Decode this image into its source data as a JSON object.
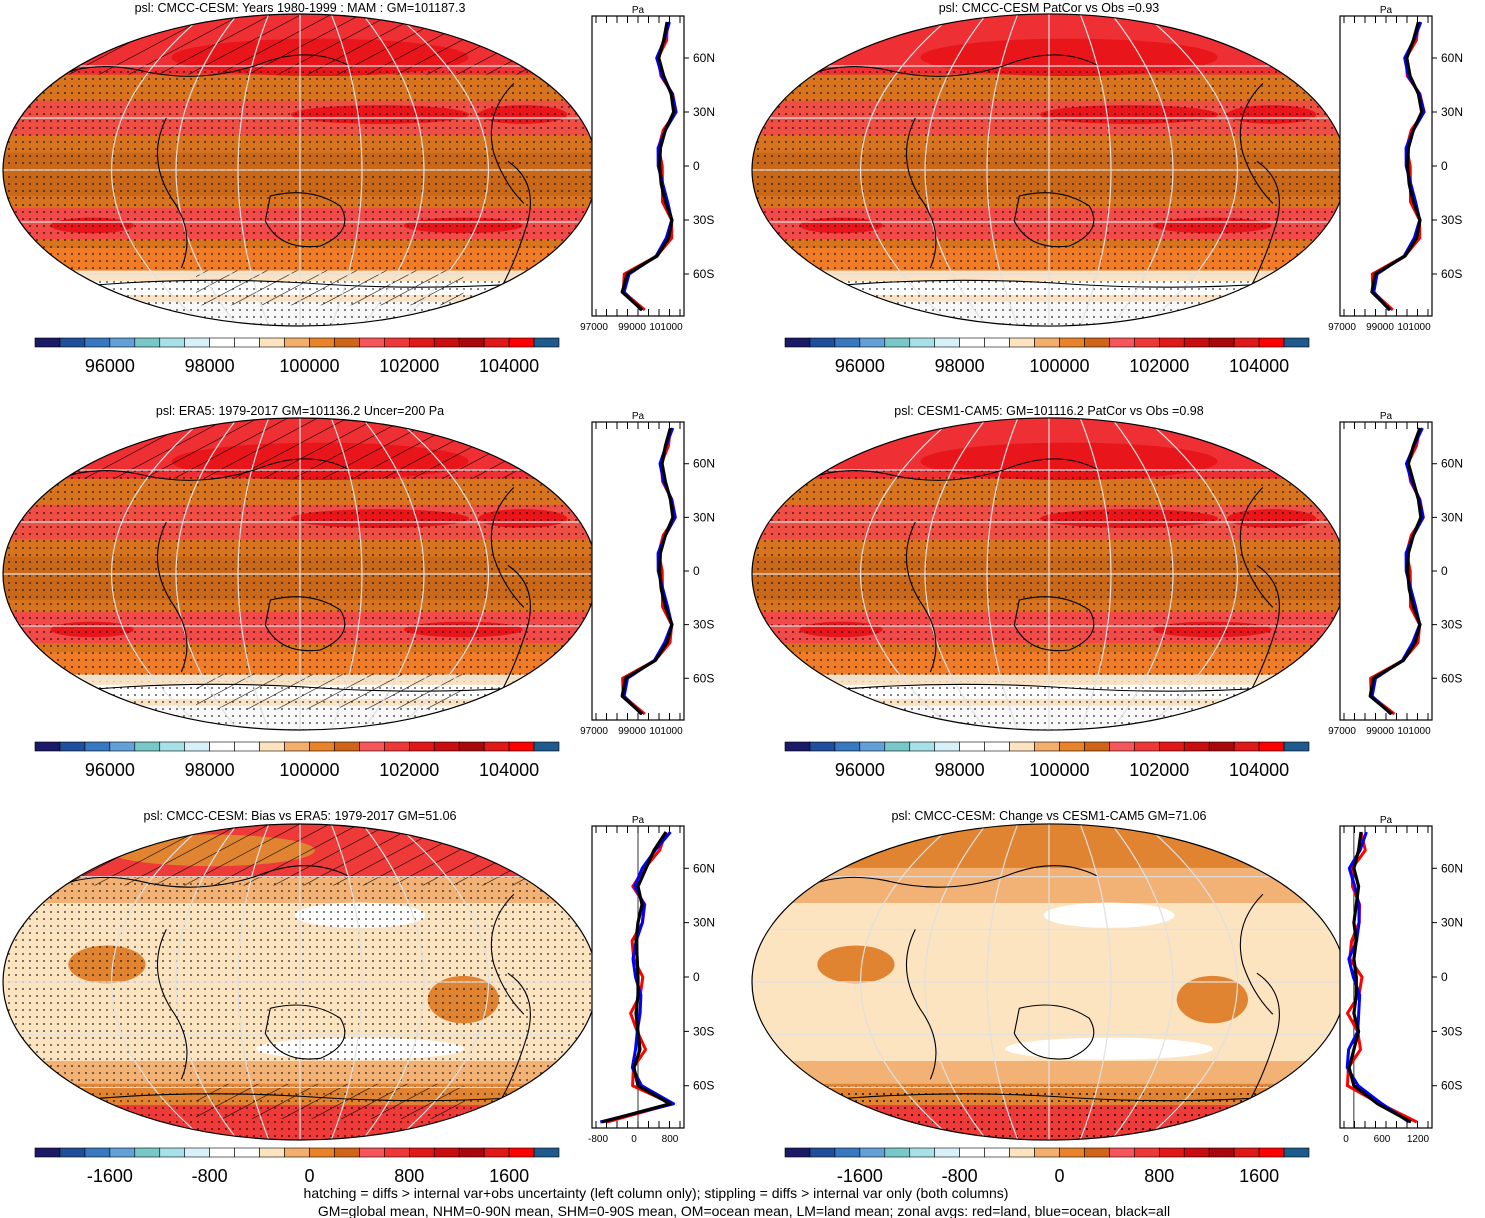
{
  "figure": {
    "variable": "psl",
    "units": "Pa",
    "projection": "Robinson",
    "panels": [
      {
        "id": "p1",
        "title": "psl: CMCC-CESM: Years 1980-1999 : MAM : GM=101187.3",
        "kind": "abs",
        "xticks": [
          "97000",
          "99000",
          "101000"
        ],
        "hatched": true
      },
      {
        "id": "p2",
        "title": "psl: CMCC-CESM PatCor vs Obs =0.93",
        "kind": "abs",
        "xticks": [
          "97000",
          "99000",
          "101000"
        ],
        "hatched": false
      },
      {
        "id": "p3",
        "title": "psl: ERA5: 1979-2017 GM=101136.2 Uncer=200 Pa",
        "kind": "abs",
        "xticks": [
          "97000",
          "99000",
          "101000"
        ],
        "hatched": true
      },
      {
        "id": "p4",
        "title": "psl: CESM1-CAM5: GM=101116.2 PatCor vs Obs =0.98",
        "kind": "abs",
        "xticks": [
          "97000",
          "99000",
          "101000"
        ],
        "hatched": false
      },
      {
        "id": "p5",
        "title": "psl: CMCC-CESM: Bias vs ERA5: 1979-2017 GM=51.06",
        "kind": "bias",
        "xticks": [
          "-800",
          "0",
          "800"
        ],
        "hatched": true
      },
      {
        "id": "p6",
        "title": "psl: CMCC-CESM: Change vs CESM1-CAM5 GM=71.06",
        "kind": "change",
        "xticks": [
          "0",
          "600",
          "1200"
        ],
        "hatched": false
      }
    ],
    "lat_ticks": [
      "60N",
      "30N",
      "0",
      "30S",
      "60S"
    ],
    "colorbars": {
      "abs": {
        "labels": [
          "96000",
          "98000",
          "100000",
          "102000",
          "104000"
        ],
        "colors": [
          "#1a1a66",
          "#1f4e9a",
          "#3878c0",
          "#64a0d8",
          "#78c8c8",
          "#a8e0e8",
          "#d8f0f8",
          "#ffffff",
          "#ffffff",
          "#fde4c0",
          "#f4ae6c",
          "#e8832a",
          "#d06418",
          "#f6555a",
          "#ee3838",
          "#e01818",
          "#c80c10",
          "#a8080c",
          "#e01818",
          "#ff0000",
          "#1e5a8c"
        ]
      },
      "diff": {
        "labels": [
          "-1600",
          "-800",
          "0",
          "800",
          "1600"
        ],
        "colors": [
          "#1a1a66",
          "#1f4e9a",
          "#3878c0",
          "#64a0d8",
          "#78c8c8",
          "#a8e0e8",
          "#d8f0f8",
          "#ffffff",
          "#ffffff",
          "#fde4c0",
          "#f4ae6c",
          "#e8832a",
          "#d06418",
          "#f6555a",
          "#ee3838",
          "#e01818",
          "#c80c10",
          "#a8080c",
          "#e01818",
          "#ff0000",
          "#1e5a8c"
        ]
      }
    },
    "zonal_legend": {
      "land": "#ff0000",
      "ocean": "#0000ff",
      "all": "#000000"
    },
    "footnotes": [
      "hatching = diffs > internal var+obs uncertainty (left column only); stippling = diffs > internal var only (both columns)",
      "GM=global mean, NHM=0-90N mean, SHM=0-90S mean, OM=ocean mean, LM=land mean; zonal avgs: red=land, blue=ocean, black=all"
    ]
  },
  "chart_data": [
    {
      "type": "heatmap",
      "title": "psl: CMCC-CESM: Years 1980-1999 : MAM : GM=101187.3",
      "units": "Pa",
      "colorbar_ticks": [
        96000,
        98000,
        100000,
        102000,
        104000
      ],
      "zonal_mean": {
        "lat": [
          80,
          70,
          60,
          50,
          40,
          30,
          20,
          10,
          0,
          -10,
          -20,
          -30,
          -40,
          -50,
          -60,
          -70,
          -80
        ],
        "all": [
          101400,
          101200,
          100900,
          101200,
          101650,
          101800,
          101300,
          101000,
          100950,
          101050,
          101300,
          101700,
          101500,
          100800,
          99000,
          98700,
          99900
        ]
      }
    },
    {
      "type": "heatmap",
      "title": "psl: CMCC-CESM PatCor vs Obs =0.93",
      "units": "Pa",
      "colorbar_ticks": [
        96000,
        98000,
        100000,
        102000,
        104000
      ],
      "zonal_mean": {
        "lat": [
          80,
          70,
          60,
          50,
          40,
          30,
          20,
          10,
          0,
          -10,
          -20,
          -30,
          -40,
          -50,
          -60,
          -70,
          -80
        ],
        "all": [
          101600,
          101300,
          100900,
          101100,
          101600,
          101800,
          101300,
          101000,
          100950,
          101050,
          101300,
          101700,
          101500,
          100800,
          99000,
          98800,
          99900
        ]
      }
    },
    {
      "type": "heatmap",
      "title": "psl: ERA5: 1979-2017 GM=101136.2 Uncer=200 Pa",
      "units": "Pa",
      "colorbar_ticks": [
        96000,
        98000,
        100000,
        102000,
        104000
      ],
      "zonal_mean": {
        "lat": [
          80,
          70,
          60,
          50,
          40,
          30,
          20,
          10,
          0,
          -10,
          -20,
          -30,
          -40,
          -50,
          -60,
          -70,
          -80
        ],
        "all": [
          101600,
          101300,
          101100,
          101300,
          101600,
          101750,
          101300,
          101000,
          100950,
          101050,
          101300,
          101700,
          101400,
          100700,
          98900,
          98700,
          99900
        ]
      }
    },
    {
      "type": "heatmap",
      "title": "psl: CESM1-CAM5: GM=101116.2 PatCor vs Obs =0.98",
      "units": "Pa",
      "colorbar_ticks": [
        96000,
        98000,
        100000,
        102000,
        104000
      ],
      "zonal_mean": {
        "lat": [
          80,
          70,
          60,
          50,
          40,
          30,
          20,
          10,
          0,
          -10,
          -20,
          -30,
          -40,
          -50,
          -60,
          -70,
          -80
        ],
        "all": [
          101700,
          101300,
          101000,
          101300,
          101600,
          101750,
          101300,
          101000,
          100950,
          101050,
          101300,
          101700,
          101400,
          100700,
          98900,
          98700,
          100000
        ]
      }
    },
    {
      "type": "heatmap",
      "title": "psl: CMCC-CESM: Bias vs ERA5: 1979-2017 GM=51.06",
      "units": "Pa",
      "colorbar_ticks": [
        -1600,
        -800,
        0,
        800,
        1600
      ],
      "zonal_mean": {
        "lat": [
          80,
          70,
          60,
          50,
          40,
          30,
          20,
          10,
          0,
          -10,
          -20,
          -30,
          -40,
          -50,
          -60,
          -70,
          -80
        ],
        "all": [
          700,
          400,
          200,
          0,
          100,
          0,
          -50,
          -20,
          0,
          0,
          -50,
          0,
          50,
          -100,
          0,
          800,
          -900
        ]
      }
    },
    {
      "type": "heatmap",
      "title": "psl: CMCC-CESM: Change vs CESM1-CAM5 GM=71.06",
      "units": "Pa",
      "colorbar_ticks": [
        -1600,
        -800,
        0,
        800,
        1600
      ],
      "zonal_mean": {
        "lat": [
          80,
          70,
          60,
          50,
          40,
          30,
          20,
          10,
          0,
          -10,
          -20,
          -30,
          -40,
          -50,
          -60,
          -70,
          -80
        ],
        "all": [
          150,
          100,
          0,
          100,
          50,
          0,
          50,
          0,
          50,
          50,
          0,
          100,
          0,
          -100,
          0,
          500,
          1200
        ]
      }
    }
  ]
}
